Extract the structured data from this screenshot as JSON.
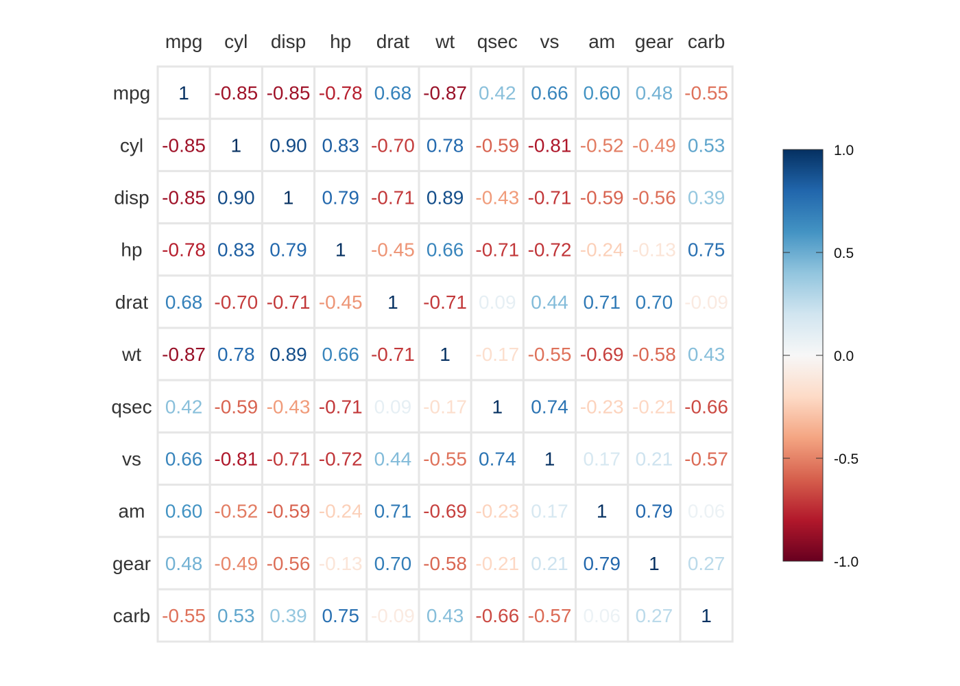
{
  "chart_data": {
    "type": "heatmap",
    "variables": [
      "mpg",
      "cyl",
      "disp",
      "hp",
      "drat",
      "wt",
      "qsec",
      "vs",
      "am",
      "gear",
      "carb"
    ],
    "matrix": [
      [
        1,
        -0.85,
        -0.85,
        -0.78,
        0.68,
        -0.87,
        0.42,
        0.66,
        0.6,
        0.48,
        -0.55
      ],
      [
        -0.85,
        1,
        0.9,
        0.83,
        -0.7,
        0.78,
        -0.59,
        -0.81,
        -0.52,
        -0.49,
        0.53
      ],
      [
        -0.85,
        0.9,
        1,
        0.79,
        -0.71,
        0.89,
        -0.43,
        -0.71,
        -0.59,
        -0.56,
        0.39
      ],
      [
        -0.78,
        0.83,
        0.79,
        1,
        -0.45,
        0.66,
        -0.71,
        -0.72,
        -0.24,
        -0.13,
        0.75
      ],
      [
        0.68,
        -0.7,
        -0.71,
        -0.45,
        1,
        -0.71,
        0.09,
        0.44,
        0.71,
        0.7,
        -0.09
      ],
      [
        -0.87,
        0.78,
        0.89,
        0.66,
        -0.71,
        1,
        -0.17,
        -0.55,
        -0.69,
        -0.58,
        0.43
      ],
      [
        0.42,
        -0.59,
        -0.43,
        -0.71,
        0.09,
        -0.17,
        1,
        0.74,
        -0.23,
        -0.21,
        -0.66
      ],
      [
        0.66,
        -0.81,
        -0.71,
        -0.72,
        0.44,
        -0.55,
        0.74,
        1,
        0.17,
        0.21,
        -0.57
      ],
      [
        0.6,
        -0.52,
        -0.59,
        -0.24,
        0.71,
        -0.69,
        -0.23,
        0.17,
        1,
        0.79,
        0.06
      ],
      [
        0.48,
        -0.49,
        -0.56,
        -0.13,
        0.7,
        -0.58,
        -0.21,
        0.21,
        0.79,
        1,
        0.27
      ],
      [
        -0.55,
        0.53,
        0.39,
        0.75,
        -0.09,
        0.43,
        -0.66,
        -0.57,
        0.06,
        0.27,
        1
      ]
    ],
    "value_range": [
      -1,
      1
    ],
    "diagonal_label": "1",
    "colorbar": {
      "ticks": [
        1.0,
        0.5,
        0.0,
        -0.5,
        -1.0
      ],
      "tick_labels": [
        "1.0",
        "0.5",
        "0.0",
        "-0.5",
        "-1.0"
      ],
      "colors": [
        "#67001F",
        "#B2182B",
        "#D6604D",
        "#F4A582",
        "#FDDBC7",
        "#F7F7F7",
        "#D1E5F0",
        "#92C5DE",
        "#4393C3",
        "#2166AC",
        "#053061"
      ]
    },
    "legend": "right"
  }
}
